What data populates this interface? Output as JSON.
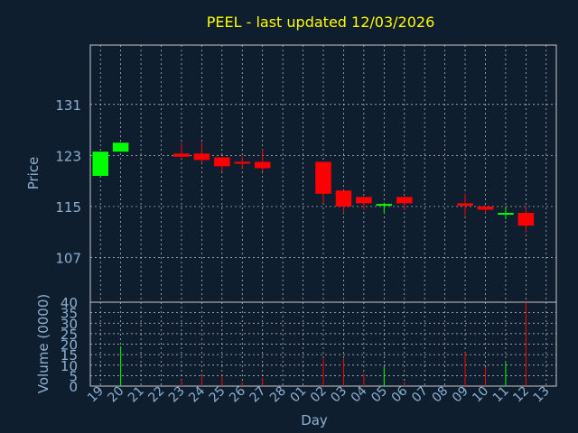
{
  "chart_data": {
    "type": "candlestick",
    "title": "PEEL - last updated 12/03/2026",
    "xlabel": "Day",
    "price_panel": {
      "ylabel": "Price",
      "yticks": [
        107,
        115,
        123,
        131
      ],
      "ylim": [
        100,
        140.3
      ],
      "grid": true
    },
    "volume_panel": {
      "ylabel": "Volume (0000)",
      "yticks": [
        0,
        5,
        10,
        15,
        20,
        25,
        30,
        35,
        40
      ],
      "ylim": [
        0,
        40
      ],
      "grid": true
    },
    "x_labels": [
      "19",
      "20",
      "21",
      "22",
      "23",
      "24",
      "25",
      "26",
      "27",
      "28",
      "01",
      "02",
      "03",
      "04",
      "05",
      "06",
      "07",
      "08",
      "09",
      "10",
      "11",
      "12",
      "13"
    ],
    "candles": [
      {
        "day": "19",
        "open": 119.8,
        "close": 123.6,
        "high": 123.6,
        "low": 119.8,
        "volume": 0
      },
      {
        "day": "20",
        "open": 123.6,
        "close": 125.0,
        "high": 125.0,
        "low": 123.6,
        "volume": 19
      },
      {
        "day": "23",
        "open": 123.3,
        "close": 122.8,
        "high": 125.0,
        "low": 122.5,
        "volume": 3
      },
      {
        "day": "24",
        "open": 123.3,
        "close": 122.3,
        "high": 125.0,
        "low": 121.8,
        "volume": 5
      },
      {
        "day": "25",
        "open": 122.7,
        "close": 121.3,
        "high": 122.7,
        "low": 120.5,
        "volume": 5
      },
      {
        "day": "26",
        "open": 122.0,
        "close": 121.7,
        "high": 122.8,
        "low": 121.0,
        "volume": 2
      },
      {
        "day": "27",
        "open": 122.0,
        "close": 121.0,
        "high": 124.0,
        "low": 120.5,
        "volume": 4
      },
      {
        "day": "02",
        "open": 122.0,
        "close": 117.0,
        "high": 122.0,
        "low": 115.5,
        "volume": 13
      },
      {
        "day": "03",
        "open": 117.5,
        "close": 115.0,
        "high": 117.5,
        "low": 114.0,
        "volume": 13
      },
      {
        "day": "04",
        "open": 116.5,
        "close": 115.5,
        "high": 116.5,
        "low": 114.5,
        "volume": 6
      },
      {
        "day": "05",
        "open": 115.2,
        "close": 115.4,
        "high": 115.6,
        "low": 114.0,
        "volume": 9
      },
      {
        "day": "06",
        "open": 116.5,
        "close": 115.5,
        "high": 116.5,
        "low": 114.5,
        "volume": 2
      },
      {
        "day": "09",
        "open": 115.5,
        "close": 115.1,
        "high": 117.0,
        "low": 113.5,
        "volume": 16
      },
      {
        "day": "10",
        "open": 115.0,
        "close": 114.5,
        "high": 115.0,
        "low": 114.0,
        "volume": 9
      },
      {
        "day": "11",
        "open": 113.9,
        "close": 114.0,
        "high": 115.0,
        "low": 113.0,
        "volume": 11
      },
      {
        "day": "12",
        "open": 114.0,
        "close": 112.0,
        "high": 115.0,
        "low": 111.0,
        "volume": 40
      }
    ],
    "colors": {
      "background": "#0f1e2f",
      "up": "#00ff00",
      "down": "#ff0000",
      "grid": "#c8c8c8",
      "axis_text": "#8fb0d0",
      "title": "#ffff00"
    }
  }
}
